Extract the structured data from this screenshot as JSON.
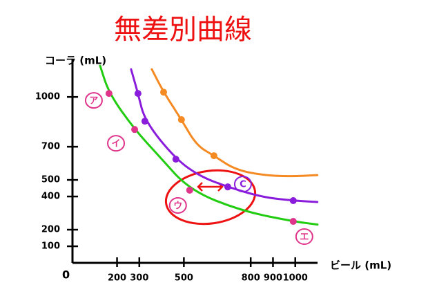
{
  "chart_data": {
    "type": "line",
    "title": "無差別曲線",
    "y_label": "コーラ (mL)",
    "x_label": "ビール (mL)",
    "origin_label": "0",
    "xlim": [
      0,
      1100
    ],
    "ylim": [
      0,
      1230
    ],
    "xticks": [
      200,
      300,
      500,
      800,
      900,
      1000
    ],
    "yticks": [
      100,
      200,
      400,
      500,
      700,
      1000
    ],
    "series": [
      {
        "color": "#22cc11",
        "x": [
          124,
          164,
          279,
          387,
          526,
          759,
          991,
          1100
        ],
        "values": [
          1188,
          1021,
          804,
          646,
          438,
          313,
          250,
          231
        ]
      },
      {
        "color": "#8a1cdc",
        "x": [
          263,
          294,
          325,
          464,
          573,
          697,
          851,
          991,
          1099
        ],
        "values": [
          1167,
          1021,
          854,
          625,
          521,
          458,
          396,
          375,
          367
        ]
      },
      {
        "color": "#f58a22",
        "x": [
          356,
          409,
          489,
          557,
          635,
          728,
          851,
          975,
          1099
        ],
        "values": [
          1167,
          1029,
          863,
          708,
          646,
          563,
          529,
          521,
          529
        ]
      }
    ],
    "points": [
      {
        "label": "ア",
        "x": 164,
        "y": 1021,
        "color": "#e0338a"
      },
      {
        "label": "イ",
        "x": 279,
        "y": 804,
        "color": "#e0338a"
      },
      {
        "label": "ウ",
        "x": 526,
        "y": 438,
        "color": "#e0338a"
      },
      {
        "label": "エ",
        "x": 991,
        "y": 250,
        "color": "#e0338a"
      },
      {
        "label": "C",
        "x": 697,
        "y": 458,
        "color": "#8a1cdc"
      },
      {
        "label": null,
        "x": 294,
        "y": 1021,
        "color": "#8a1cdc"
      },
      {
        "label": null,
        "x": 325,
        "y": 854,
        "color": "#8a1cdc"
      },
      {
        "label": null,
        "x": 464,
        "y": 625,
        "color": "#8a1cdc"
      },
      {
        "label": null,
        "x": 991,
        "y": 375,
        "color": "#8a1cdc"
      },
      {
        "label": null,
        "x": 409,
        "y": 1029,
        "color": "#f58a22"
      },
      {
        "label": null,
        "x": 489,
        "y": 863,
        "color": "#f58a22"
      },
      {
        "label": null,
        "x": 635,
        "y": 646,
        "color": "#f58a22"
      }
    ]
  }
}
